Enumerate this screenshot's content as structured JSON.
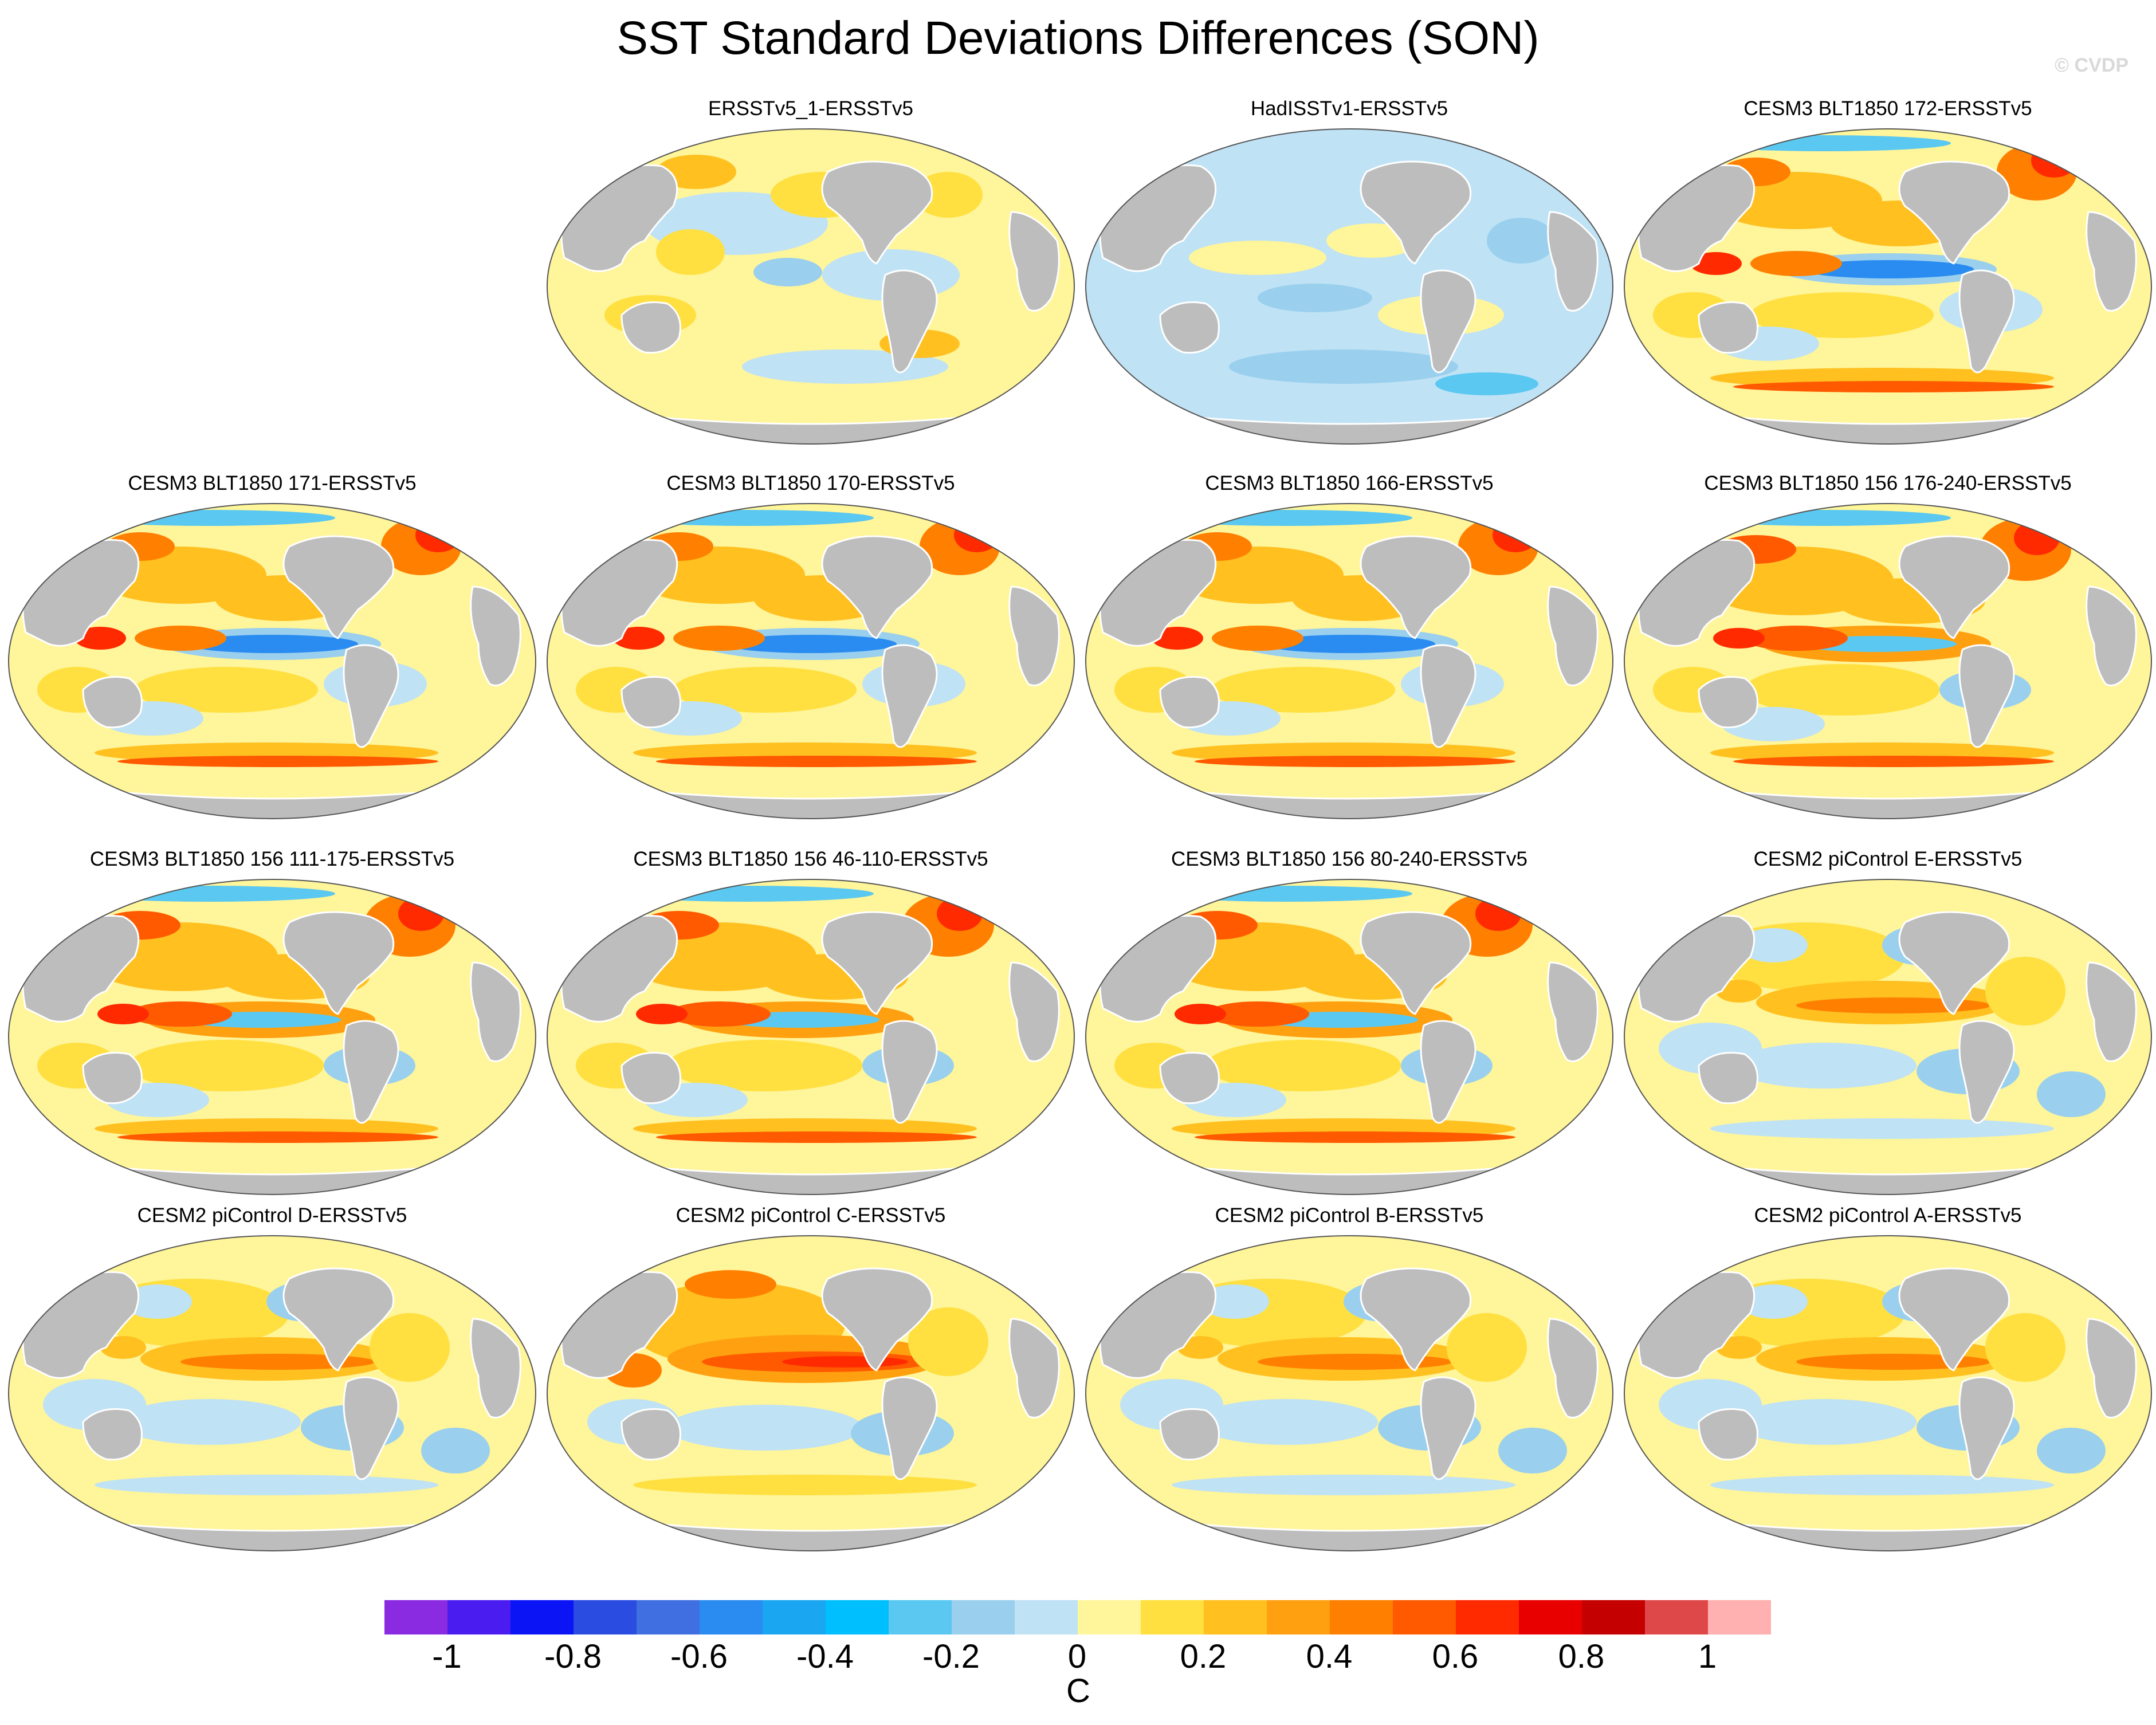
{
  "title": "SST Standard Deviations Differences (SON)",
  "credit": "© CVDP",
  "panels": [
    {
      "title": "ERSSTv5_1-ERSSTv5",
      "pattern": "obs_small"
    },
    {
      "title": "HadISSTv1-ERSSTv5",
      "pattern": "obs_cool"
    },
    {
      "title": "CESM3 BLT1850 172-ERSSTv5",
      "pattern": "cesm3"
    },
    {
      "title": "CESM3 BLT1850 171-ERSSTv5",
      "pattern": "cesm3"
    },
    {
      "title": "CESM3 BLT1850 170-ERSSTv5",
      "pattern": "cesm3"
    },
    {
      "title": "CESM3 BLT1850 166-ERSSTv5",
      "pattern": "cesm3"
    },
    {
      "title": "CESM3 BLT1850 156 176-240-ERSSTv5",
      "pattern": "cesm3_warm"
    },
    {
      "title": "CESM3 BLT1850 156 111-175-ERSSTv5",
      "pattern": "cesm3_warm"
    },
    {
      "title": "CESM3 BLT1850 156 46-110-ERSSTv5",
      "pattern": "cesm3_warm"
    },
    {
      "title": "CESM3 BLT1850 156 80-240-ERSSTv5",
      "pattern": "cesm3_warm"
    },
    {
      "title": "CESM2 piControl E-ERSSTv5",
      "pattern": "cesm2"
    },
    {
      "title": "CESM2 piControl D-ERSSTv5",
      "pattern": "cesm2"
    },
    {
      "title": "CESM2 piControl C-ERSSTv5",
      "pattern": "cesm2_strong"
    },
    {
      "title": "CESM2 piControl B-ERSSTv5",
      "pattern": "cesm2"
    },
    {
      "title": "CESM2 piControl A-ERSSTv5",
      "pattern": "cesm2"
    }
  ],
  "colorbar": {
    "unit": "C",
    "tick_labels": [
      "-1",
      "-0.8",
      "-0.6",
      "-0.4",
      "-0.2",
      "0",
      "0.2",
      "0.4",
      "0.6",
      "0.8",
      "1"
    ],
    "colors": [
      "#8a2be2",
      "#4b1cf0",
      "#0a14f5",
      "#2a4ce0",
      "#3f6fe0",
      "#2a8cf0",
      "#1aa6f0",
      "#00bfff",
      "#5ac8f0",
      "#9ad0ee",
      "#bfe2f5",
      "#fff59a",
      "#ffe040",
      "#ffc020",
      "#ffa010",
      "#ff8000",
      "#ff5a00",
      "#ff2a00",
      "#e80000",
      "#c40000",
      "#de4848",
      "#ffb0b0"
    ]
  }
}
